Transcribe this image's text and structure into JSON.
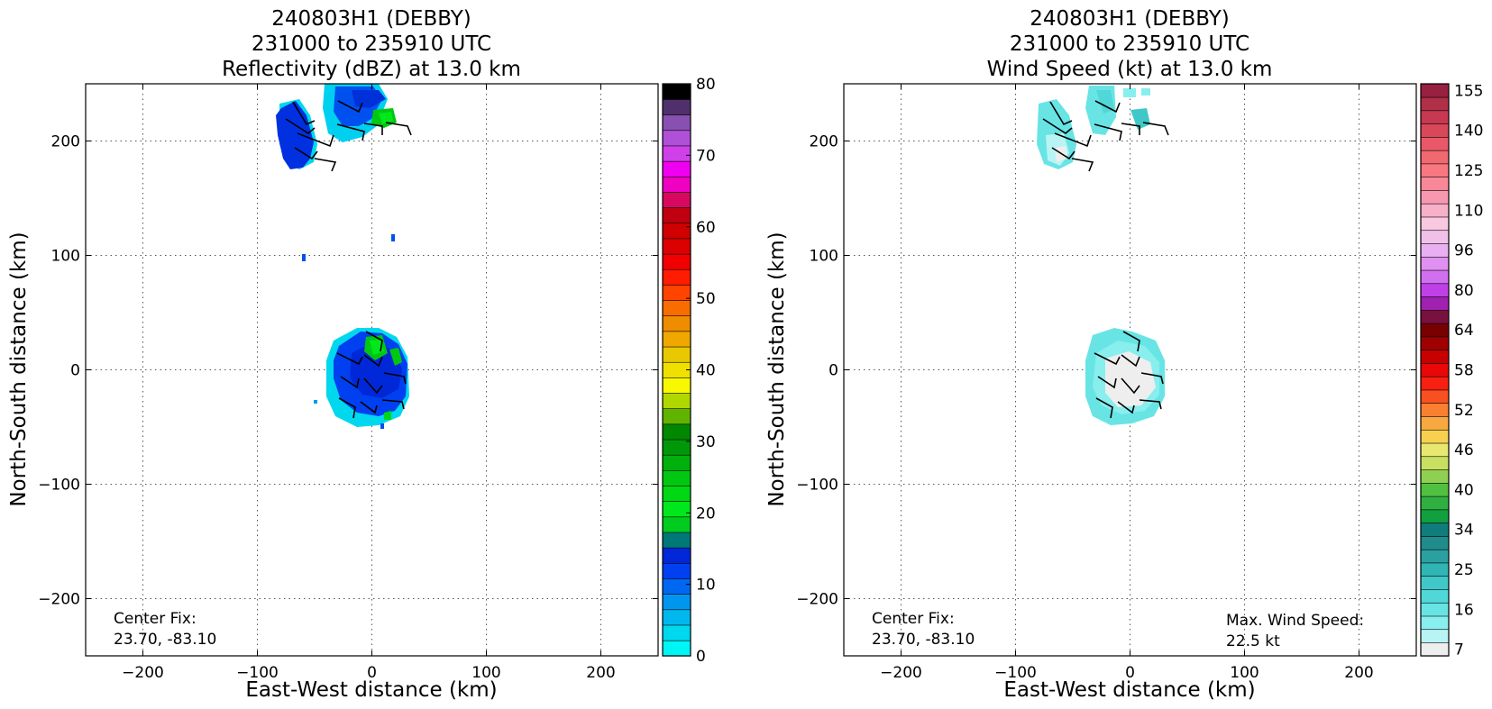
{
  "chart_data": [
    {
      "type": "heatmap",
      "title_lines": [
        "240803H1 (DEBBY)",
        "231000 to 235910 UTC",
        "Reflectivity (dBZ) at 13.0 km"
      ],
      "xlabel": "East-West distance (km)",
      "ylabel": "North-South distance (km)",
      "xlim": [
        -250,
        250
      ],
      "ylim": [
        -250,
        250
      ],
      "xticks": [
        -200,
        -100,
        0,
        100,
        200
      ],
      "yticks": [
        -200,
        -100,
        0,
        100,
        200
      ],
      "xtick_labels": [
        "−200",
        "−100",
        "0",
        "100",
        "200"
      ],
      "ytick_labels": [
        "−200",
        "−100",
        "0",
        "100",
        "200"
      ],
      "grid": true,
      "colorbar": {
        "min": 0,
        "max": 80,
        "ticks": [
          0,
          10,
          20,
          30,
          40,
          50,
          60,
          70,
          80
        ],
        "tick_labels": [
          "0",
          "10",
          "20",
          "30",
          "40",
          "50",
          "60",
          "70",
          "80"
        ],
        "colors": [
          "#00f5f5",
          "#00d8ee",
          "#00b8ee",
          "#0096f0",
          "#0068f0",
          "#0040f0",
          "#0028d8",
          "#007878",
          "#00cc20",
          "#00e81c",
          "#00d814",
          "#00c810",
          "#00b00c",
          "#009808",
          "#008800",
          "#60b400",
          "#b0d800",
          "#f8f800",
          "#f0e000",
          "#e8c800",
          "#f0a800",
          "#f08c00",
          "#f86c00",
          "#ff4400",
          "#ff1c00",
          "#f00000",
          "#dc0000",
          "#d00000",
          "#c00010",
          "#d80860",
          "#f000c0",
          "#f000f0",
          "#d040e8",
          "#b050d8",
          "#8850b0",
          "#50306c",
          "#000000"
        ]
      },
      "annotation": [
        "Center Fix:",
        "23.70, -83.10"
      ],
      "data_description_values": {
        "northern_cluster_center_km": [
          -40,
          210
        ],
        "central_cluster_center_km": [
          0,
          0
        ],
        "peak_reflectivity_dbz": 24
      }
    },
    {
      "type": "heatmap",
      "title_lines": [
        "240803H1 (DEBBY)",
        "231000 to 235910 UTC",
        "Wind Speed (kt) at 13.0 km"
      ],
      "xlabel": "East-West distance (km)",
      "ylabel": "North-South distance (km)",
      "xlim": [
        -250,
        250
      ],
      "ylim": [
        -250,
        250
      ],
      "xticks": [
        -200,
        -100,
        0,
        100,
        200
      ],
      "yticks": [
        -200,
        -100,
        0,
        100,
        200
      ],
      "xtick_labels": [
        "−200",
        "−100",
        "0",
        "100",
        "200"
      ],
      "ytick_labels": [
        "−200",
        "−100",
        "0",
        "100",
        "200"
      ],
      "grid": true,
      "colorbar": {
        "tick_labels": [
          "7",
          "16",
          "25",
          "34",
          "40",
          "46",
          "52",
          "58",
          "64",
          "80",
          "96",
          "110",
          "125",
          "140",
          "155"
        ],
        "tick_bin_index": [
          0,
          3,
          6,
          9,
          12,
          15,
          18,
          21,
          24,
          27,
          30,
          33,
          36,
          39,
          42
        ],
        "colors": [
          "#eeeeee",
          "#b8f4f4",
          "#88eeee",
          "#68e4e4",
          "#50d8d8",
          "#40c8c8",
          "#30b4b4",
          "#2aa0a0",
          "#208c8c",
          "#107c7c",
          "#10a040",
          "#30b040",
          "#50c040",
          "#90d050",
          "#c8e060",
          "#e8e870",
          "#f8d050",
          "#f8a840",
          "#f88030",
          "#f85020",
          "#f82010",
          "#e80808",
          "#c80000",
          "#a00000",
          "#780000",
          "#781040",
          "#a020b0",
          "#c040e8",
          "#d070f0",
          "#e090f0",
          "#e8b0f0",
          "#f0c0e8",
          "#f8c8e0",
          "#f8b0c8",
          "#f898b0",
          "#f88898",
          "#f87880",
          "#f06870",
          "#e85868",
          "#d84858",
          "#c83850",
          "#b03048",
          "#982040"
        ]
      },
      "annotation": [
        "Center Fix:",
        "23.70, -83.10"
      ],
      "max_wind": [
        "Max. Wind Speed:",
        "22.5 kt"
      ]
    }
  ]
}
